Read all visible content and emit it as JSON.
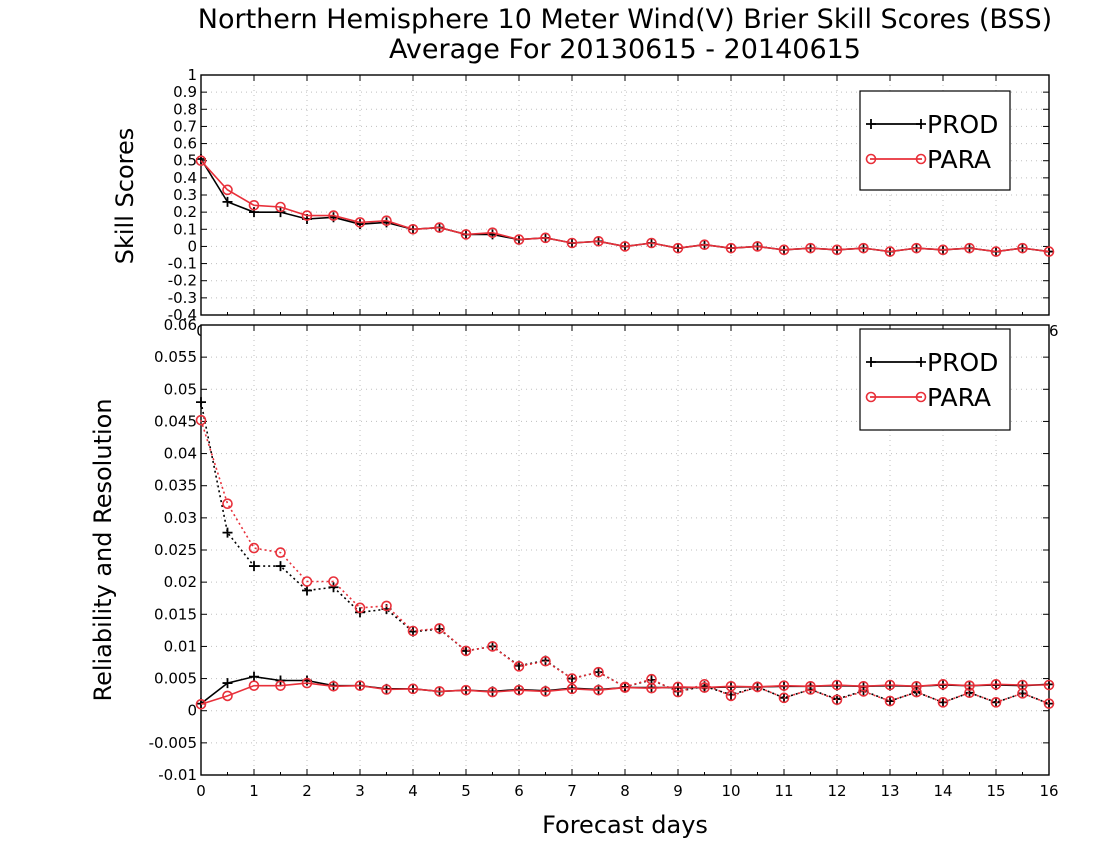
{
  "title": "Northern Hemisphere 10 Meter Wind(V) Brier Skill Scores (BSS)",
  "subtitle": "Average For 20130615 - 20140615",
  "colors": {
    "prod": "#000000",
    "para": "#e8303a",
    "grid": "#bfbfbf"
  },
  "chart_data": [
    {
      "type": "line",
      "ylabel": "Skill Scores",
      "xlabel": "",
      "xlim": [
        0,
        16
      ],
      "ylim": [
        -0.4,
        1.0
      ],
      "yticks": [
        "-0.4",
        "-0.3",
        "-0.2",
        "-0.1",
        "0",
        "0.1",
        "0.2",
        "0.3",
        "0.4",
        "0.5",
        "0.6",
        "0.7",
        "0.8",
        "0.9",
        "1"
      ],
      "xticks": [
        "0",
        "1",
        "2",
        "3",
        "4",
        "5",
        "6",
        "7",
        "8",
        "9",
        "10",
        "11",
        "12",
        "13",
        "14",
        "15",
        "16"
      ],
      "grid": true,
      "legend": {
        "placement": "top-right",
        "entries": [
          "PROD",
          "PARA"
        ]
      },
      "x": [
        0,
        0.5,
        1,
        1.5,
        2,
        2.5,
        3,
        3.5,
        4,
        4.5,
        5,
        5.5,
        6,
        6.5,
        7,
        7.5,
        8,
        8.5,
        9,
        9.5,
        10,
        10.5,
        11,
        11.5,
        12,
        12.5,
        13,
        13.5,
        14,
        14.5,
        15,
        15.5,
        16
      ],
      "series": [
        {
          "name": "PROD",
          "style": "solid",
          "marker": "plus",
          "values": [
            0.51,
            0.26,
            0.2,
            0.2,
            0.16,
            0.17,
            0.13,
            0.14,
            0.1,
            0.11,
            0.07,
            0.07,
            0.04,
            0.05,
            0.02,
            0.03,
            0.0,
            0.02,
            -0.01,
            0.01,
            -0.01,
            0.0,
            -0.02,
            -0.01,
            -0.02,
            -0.01,
            -0.03,
            -0.01,
            -0.02,
            -0.01,
            -0.03,
            -0.01,
            -0.03
          ]
        },
        {
          "name": "PARA",
          "style": "solid",
          "marker": "circle",
          "values": [
            0.5,
            0.33,
            0.24,
            0.23,
            0.18,
            0.18,
            0.14,
            0.15,
            0.1,
            0.11,
            0.07,
            0.08,
            0.04,
            0.05,
            0.02,
            0.03,
            0.0,
            0.02,
            -0.01,
            0.01,
            -0.01,
            0.0,
            -0.02,
            -0.01,
            -0.02,
            -0.01,
            -0.03,
            -0.01,
            -0.02,
            -0.01,
            -0.03,
            -0.01,
            -0.03
          ]
        }
      ]
    },
    {
      "type": "line",
      "ylabel": "Reliability and Resolution",
      "xlabel": "Forecast days",
      "xlim": [
        0,
        16
      ],
      "ylim": [
        -0.01,
        0.06
      ],
      "yticks": [
        "-0.01",
        "-0.005",
        "0",
        "0.005",
        "0.01",
        "0.015",
        "0.02",
        "0.025",
        "0.03",
        "0.035",
        "0.04",
        "0.045",
        "0.05",
        "0.055",
        "0.06"
      ],
      "xticks": [
        "0",
        "1",
        "2",
        "3",
        "4",
        "5",
        "6",
        "7",
        "8",
        "9",
        "10",
        "11",
        "12",
        "13",
        "14",
        "15",
        "16"
      ],
      "grid": true,
      "legend": {
        "placement": "top-right",
        "entries": [
          "PROD",
          "PARA"
        ]
      },
      "x": [
        0,
        0.5,
        1,
        1.5,
        2,
        2.5,
        3,
        3.5,
        4,
        4.5,
        5,
        5.5,
        6,
        6.5,
        7,
        7.5,
        8,
        8.5,
        9,
        9.5,
        10,
        10.5,
        11,
        11.5,
        12,
        12.5,
        13,
        13.5,
        14,
        14.5,
        15,
        15.5,
        16
      ],
      "series": [
        {
          "name": "PROD",
          "style": "dotted",
          "marker": "plus",
          "values": [
            0.048,
            0.0277,
            0.0225,
            0.0225,
            0.0187,
            0.0192,
            0.0153,
            0.0158,
            0.0123,
            0.0127,
            0.0093,
            0.01,
            0.007,
            0.0078,
            0.005,
            0.006,
            0.0037,
            0.0048,
            0.003,
            0.0038,
            0.0025,
            0.0037,
            0.002,
            0.0033,
            0.0018,
            0.0031,
            0.0015,
            0.0029,
            0.0013,
            0.0028,
            0.0013,
            0.0027,
            0.0011
          ]
        },
        {
          "name": "PARA",
          "style": "dotted",
          "marker": "circle",
          "values": [
            0.0452,
            0.0322,
            0.0253,
            0.0246,
            0.0201,
            0.0201,
            0.016,
            0.0163,
            0.0124,
            0.0128,
            0.0093,
            0.01,
            0.0069,
            0.0077,
            0.005,
            0.006,
            0.0037,
            0.0049,
            0.0029,
            0.0041,
            0.0023,
            0.0037,
            0.002,
            0.0033,
            0.0017,
            0.003,
            0.0015,
            0.0029,
            0.0013,
            0.0028,
            0.0013,
            0.0027,
            0.0011
          ]
        },
        {
          "name": "PROD",
          "style": "solid",
          "marker": "plus",
          "values": [
            0.0011,
            0.0043,
            0.0053,
            0.0047,
            0.0047,
            0.0039,
            0.0039,
            0.0034,
            0.0034,
            0.003,
            0.0032,
            0.003,
            0.0033,
            0.0031,
            0.0035,
            0.0033,
            0.0036,
            0.0036,
            0.0036,
            0.0036,
            0.0037,
            0.0037,
            0.0038,
            0.0038,
            0.0039,
            0.0038,
            0.0039,
            0.0038,
            0.004,
            0.0039,
            0.004,
            0.0039,
            0.0041
          ]
        },
        {
          "name": "PARA",
          "style": "solid",
          "marker": "circle",
          "values": [
            0.001,
            0.0023,
            0.0039,
            0.0039,
            0.0043,
            0.0038,
            0.0039,
            0.0033,
            0.0034,
            0.003,
            0.0032,
            0.0029,
            0.0032,
            0.003,
            0.0034,
            0.0032,
            0.0036,
            0.0035,
            0.0037,
            0.0036,
            0.0038,
            0.0037,
            0.0039,
            0.0038,
            0.004,
            0.0038,
            0.004,
            0.0038,
            0.0041,
            0.0039,
            0.0041,
            0.004,
            0.004
          ]
        }
      ]
    }
  ]
}
